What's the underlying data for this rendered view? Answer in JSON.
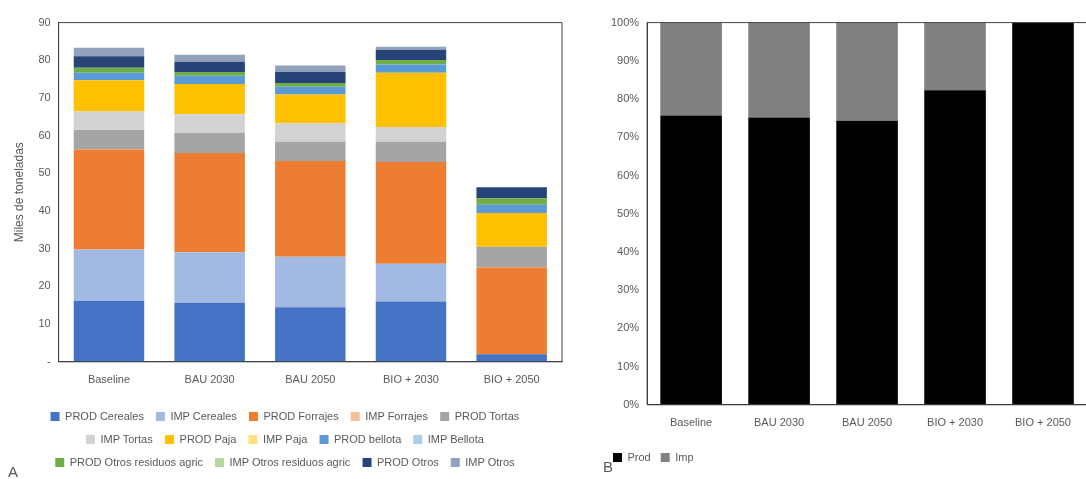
{
  "chart_data": [
    {
      "type": "bar",
      "stacked": true,
      "ylabel": "Miles de toneladas",
      "categories": [
        "Baseline",
        "BAU 2030",
        "BAU 2050",
        "BIO + 2030",
        "BIO + 2050"
      ],
      "ylim": [
        0,
        90
      ],
      "yticks": [
        {
          "value": 0,
          "label": "-"
        },
        10,
        20,
        30,
        40,
        50,
        60,
        70,
        80,
        90
      ],
      "grid": false,
      "legend": "bottom",
      "annotations": [
        "A"
      ],
      "series": [
        {
          "name": "PROD Cereales",
          "color": "#4472c4",
          "values": [
            16.2,
            15.7,
            14.5,
            16.0,
            2.0
          ]
        },
        {
          "name": "IMP Cereales",
          "color": "#a2b9e2",
          "values": [
            13.6,
            13.4,
            13.4,
            10.0,
            0
          ]
        },
        {
          "name": "PROD Forrajes",
          "color": "#ed7d31",
          "values": [
            26.5,
            26.3,
            25.4,
            27.0,
            23.0
          ]
        },
        {
          "name": "IMP Forrajes",
          "color": "#f6be98",
          "values": [
            0,
            0,
            0,
            0,
            0
          ]
        },
        {
          "name": "PROD Tortas",
          "color": "#a5a5a5",
          "values": [
            5.2,
            5.3,
            5.1,
            5.4,
            5.5
          ]
        },
        {
          "name": "IMP Tortas",
          "color": "#d2d2d2",
          "values": [
            4.9,
            5.0,
            4.9,
            3.9,
            0
          ]
        },
        {
          "name": "PROD Paja",
          "color": "#ffc000",
          "values": [
            8.3,
            8.0,
            7.6,
            14.4,
            9.0
          ]
        },
        {
          "name": "IMP Paja",
          "color": "#ffe080",
          "values": [
            0,
            0,
            0,
            0,
            0
          ]
        },
        {
          "name": "PROD bellota",
          "color": "#5b9bd5",
          "values": [
            2.0,
            2.2,
            2.1,
            2.2,
            2.2
          ]
        },
        {
          "name": "IMP Bellota",
          "color": "#adcdea",
          "values": [
            0,
            0,
            0,
            0,
            0
          ]
        },
        {
          "name": "PROD Otros residuos agric",
          "color": "#70ad47",
          "values": [
            1.3,
            1.0,
            1.0,
            1.2,
            1.7
          ]
        },
        {
          "name": "IMP Otros residuos agric",
          "color": "#b8d6a3",
          "values": [
            0,
            0,
            0,
            0,
            0
          ]
        },
        {
          "name": "PROD Otros",
          "color": "#264478",
          "values": [
            3.1,
            2.7,
            2.9,
            2.7,
            2.9
          ]
        },
        {
          "name": "IMP Otros",
          "color": "#93a2bc",
          "values": [
            2.2,
            1.9,
            1.7,
            0.8,
            0
          ]
        }
      ]
    },
    {
      "type": "bar",
      "stacked": true,
      "categories": [
        "Baseline",
        "BAU 2030",
        "BAU 2050",
        "BIO + 2030",
        "BIO + 2050"
      ],
      "ylim": [
        0,
        100
      ],
      "yticks": [
        {
          "value": 0,
          "label": "0%"
        },
        {
          "value": 10,
          "label": "10%"
        },
        {
          "value": 20,
          "label": "20%"
        },
        {
          "value": 30,
          "label": "30%"
        },
        {
          "value": 40,
          "label": "40%"
        },
        {
          "value": 50,
          "label": "50%"
        },
        {
          "value": 60,
          "label": "60%"
        },
        {
          "value": 70,
          "label": "70%"
        },
        {
          "value": 80,
          "label": "80%"
        },
        {
          "value": 90,
          "label": "90%"
        },
        {
          "value": 100,
          "label": "100%"
        }
      ],
      "grid": false,
      "legend": "bottom left",
      "annotations": [
        "B"
      ],
      "series": [
        {
          "name": "Prod",
          "color": "#000000",
          "values": [
            75.7,
            75.2,
            74.3,
            82.3,
            100
          ]
        },
        {
          "name": "Imp",
          "color": "#808080",
          "values": [
            24.3,
            24.8,
            25.7,
            17.7,
            0
          ]
        }
      ]
    }
  ]
}
